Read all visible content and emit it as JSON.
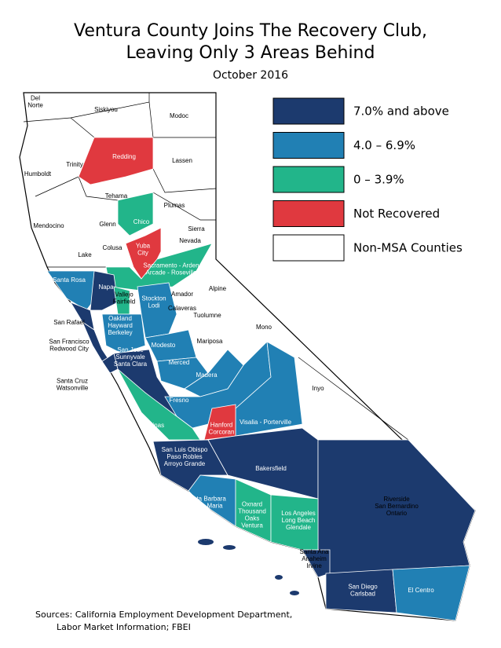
{
  "header": {
    "title_lines": [
      "Ventura County Joins The Recovery Club,",
      "Leaving Only 3 Areas Behind"
    ],
    "subtitle": "October 2016"
  },
  "legend": [
    {
      "label": "7.0% and above",
      "color": "#1c3a6e"
    },
    {
      "label": "4.0 – 6.9%",
      "color": "#2180b4"
    },
    {
      "label": "0 – 3.9%",
      "color": "#22b58a"
    },
    {
      "label": "Not Recovered",
      "color": "#e0393f"
    },
    {
      "label": "Non-MSA Counties",
      "color": "#ffffff"
    }
  ],
  "regions": [
    {
      "label": [
        "Redding"
      ],
      "color": "#e0393f"
    },
    {
      "label": [
        "Chico"
      ],
      "color": "#22b58a"
    },
    {
      "label": [
        "Yuba",
        "City"
      ],
      "color": "#e0393f"
    },
    {
      "label": [
        "Sacramento - Arden",
        "Arcade - Roseville"
      ],
      "color": "#22b58a"
    },
    {
      "label": [
        "Santa Rosa"
      ],
      "color": "#2180b4"
    },
    {
      "label": [
        "Napa"
      ],
      "color": "#1c3a6e"
    },
    {
      "label": [
        "Vallejo",
        "Fairfield"
      ],
      "color": "#22b58a"
    },
    {
      "label": [
        "San Rafael"
      ],
      "color": "#1c3a6e"
    },
    {
      "label": [
        "San Francisco",
        "Redwood City"
      ],
      "color": "#1c3a6e"
    },
    {
      "label": [
        "Oakland",
        "Hayward",
        "Berkeley"
      ],
      "color": "#2180b4"
    },
    {
      "label": [
        "Stockton",
        "Lodi"
      ],
      "color": "#2180b4"
    },
    {
      "label": [
        "Modesto"
      ],
      "color": "#2180b4"
    },
    {
      "label": [
        "San Jose",
        "Sunnyvale",
        "Santa Clara"
      ],
      "color": "#1c3a6e"
    },
    {
      "label": [
        "Santa Cruz",
        "Watsonville"
      ],
      "color": "#1c3a6e"
    },
    {
      "label": [
        "Merced"
      ],
      "color": "#2180b4"
    },
    {
      "label": [
        "Madera"
      ],
      "color": "#2180b4"
    },
    {
      "label": [
        "Fresno"
      ],
      "color": "#2180b4"
    },
    {
      "label": [
        "Visalia - Porterville"
      ],
      "color": "#2180b4"
    },
    {
      "label": [
        "Hanford",
        "Corcoran"
      ],
      "color": "#e0393f"
    },
    {
      "label": [
        "Salinas"
      ],
      "color": "#22b58a"
    },
    {
      "label": [
        "San Luis Obispo",
        "Paso Robles",
        "Arroyo Grande"
      ],
      "color": "#1c3a6e"
    },
    {
      "label": [
        "Bakersfield"
      ],
      "color": "#1c3a6e"
    },
    {
      "label": [
        "Riverside",
        "San Bernardino",
        "Ontario"
      ],
      "color": "#1c3a6e"
    },
    {
      "label": [
        "Santa Barbara",
        "Santa Maria"
      ],
      "color": "#2180b4"
    },
    {
      "label": [
        "Oxnard",
        "Thousand",
        "Oaks",
        "Ventura"
      ],
      "color": "#22b58a"
    },
    {
      "label": [
        "Los Angeles",
        "Long Beach",
        "Glendale"
      ],
      "color": "#22b58a"
    },
    {
      "label": [
        "Santa Ana",
        "Anaheim",
        "Irvine"
      ],
      "color": "#1c3a6e"
    },
    {
      "label": [
        "San Diego",
        "Carlsbad"
      ],
      "color": "#1c3a6e"
    },
    {
      "label": [
        "El Centro"
      ],
      "color": "#2180b4"
    }
  ],
  "counties": [
    [
      "Del",
      "Norte"
    ],
    [
      "Siskiyou"
    ],
    [
      "Modoc"
    ],
    [
      "Humboldt"
    ],
    [
      "Trinity"
    ],
    [
      "Lassen"
    ],
    [
      "Tehama"
    ],
    [
      "Plumas"
    ],
    [
      "Mendocino"
    ],
    [
      "Glenn"
    ],
    [
      "Sierra"
    ],
    [
      "Nevada"
    ],
    [
      "Colusa"
    ],
    [
      "Lake"
    ],
    [
      "Alpine"
    ],
    [
      "Amador"
    ],
    [
      "Calaveras"
    ],
    [
      "Tuolumne"
    ],
    [
      "Mono"
    ],
    [
      "Mariposa"
    ],
    [
      "Inyo"
    ]
  ],
  "sources": [
    "Sources: California Employment Development Department,",
    "Labor Market Information; FBEI"
  ]
}
